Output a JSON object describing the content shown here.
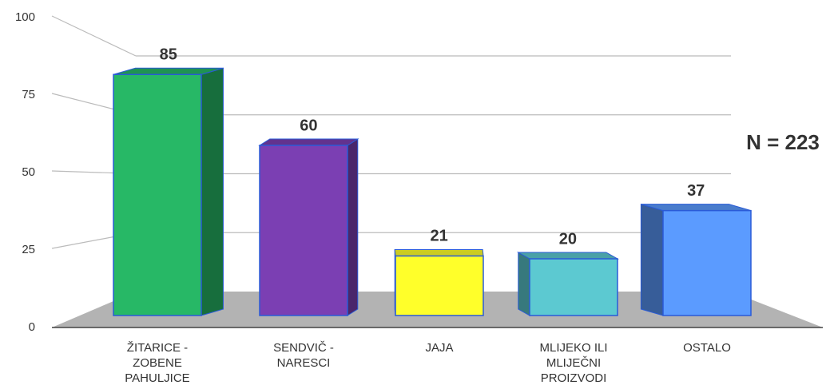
{
  "chart_data": {
    "type": "bar3d",
    "categories": [
      "ŽITARICE - ZOBENE PAHULJICE",
      "SENDVIČ - NARESCI",
      "JAJA",
      "MLIJEKO ILI MLIJEČNI PROIZVODI",
      "OSTALO"
    ],
    "values": [
      85,
      60,
      21,
      20,
      37
    ],
    "colors": [
      "#27b866",
      "#7b3fb3",
      "#ffff2a",
      "#5cc9d1",
      "#5b9bff"
    ],
    "ylim": [
      0,
      100
    ],
    "yticks": [
      0,
      25,
      50,
      75,
      100
    ],
    "grid": true,
    "annotation": "N = 223"
  }
}
